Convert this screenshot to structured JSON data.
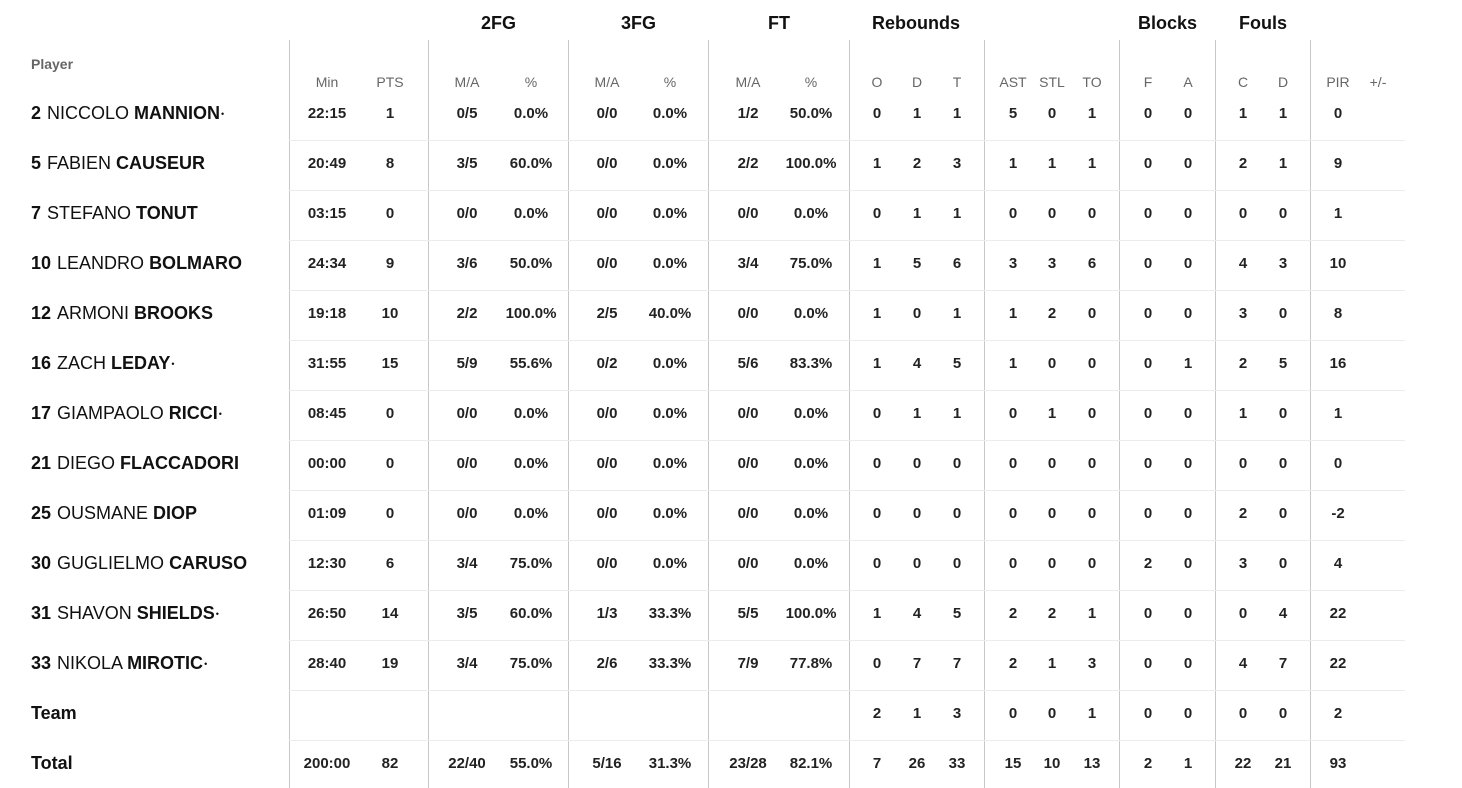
{
  "headers": {
    "player": "Player",
    "groups": [
      "2FG",
      "3FG",
      "FT",
      "Rebounds",
      "Blocks",
      "Fouls"
    ],
    "columns": [
      "Min",
      "PTS",
      "M/A",
      "%",
      "M/A",
      "%",
      "M/A",
      "%",
      "O",
      "D",
      "T",
      "AST",
      "STL",
      "TO",
      "F",
      "A",
      "C",
      "D",
      "PIR",
      "+/-"
    ]
  },
  "starter_marker": "•",
  "players": [
    {
      "jersey": "2",
      "first": "NICCOLO",
      "last": "MANNION",
      "starter": true,
      "stats": [
        "22:15",
        "1",
        "0/5",
        "0.0%",
        "0/0",
        "0.0%",
        "1/2",
        "50.0%",
        "0",
        "1",
        "1",
        "5",
        "0",
        "1",
        "0",
        "0",
        "1",
        "1",
        "0",
        ""
      ]
    },
    {
      "jersey": "5",
      "first": "FABIEN",
      "last": "CAUSEUR",
      "starter": false,
      "stats": [
        "20:49",
        "8",
        "3/5",
        "60.0%",
        "0/0",
        "0.0%",
        "2/2",
        "100.0%",
        "1",
        "2",
        "3",
        "1",
        "1",
        "1",
        "0",
        "0",
        "2",
        "1",
        "9",
        ""
      ]
    },
    {
      "jersey": "7",
      "first": "STEFANO",
      "last": "TONUT",
      "starter": false,
      "stats": [
        "03:15",
        "0",
        "0/0",
        "0.0%",
        "0/0",
        "0.0%",
        "0/0",
        "0.0%",
        "0",
        "1",
        "1",
        "0",
        "0",
        "0",
        "0",
        "0",
        "0",
        "0",
        "1",
        ""
      ]
    },
    {
      "jersey": "10",
      "first": "LEANDRO",
      "last": "BOLMARO",
      "starter": false,
      "stats": [
        "24:34",
        "9",
        "3/6",
        "50.0%",
        "0/0",
        "0.0%",
        "3/4",
        "75.0%",
        "1",
        "5",
        "6",
        "3",
        "3",
        "6",
        "0",
        "0",
        "4",
        "3",
        "10",
        ""
      ]
    },
    {
      "jersey": "12",
      "first": "ARMONI",
      "last": "BROOKS",
      "starter": false,
      "stats": [
        "19:18",
        "10",
        "2/2",
        "100.0%",
        "2/5",
        "40.0%",
        "0/0",
        "0.0%",
        "1",
        "0",
        "1",
        "1",
        "2",
        "0",
        "0",
        "0",
        "3",
        "0",
        "8",
        ""
      ]
    },
    {
      "jersey": "16",
      "first": "ZACH",
      "last": "LEDAY",
      "starter": true,
      "stats": [
        "31:55",
        "15",
        "5/9",
        "55.6%",
        "0/2",
        "0.0%",
        "5/6",
        "83.3%",
        "1",
        "4",
        "5",
        "1",
        "0",
        "0",
        "0",
        "1",
        "2",
        "5",
        "16",
        ""
      ]
    },
    {
      "jersey": "17",
      "first": "GIAMPAOLO",
      "last": "RICCI",
      "starter": true,
      "stats": [
        "08:45",
        "0",
        "0/0",
        "0.0%",
        "0/0",
        "0.0%",
        "0/0",
        "0.0%",
        "0",
        "1",
        "1",
        "0",
        "1",
        "0",
        "0",
        "0",
        "1",
        "0",
        "1",
        ""
      ]
    },
    {
      "jersey": "21",
      "first": "DIEGO",
      "last": "FLACCADORI",
      "starter": false,
      "stats": [
        "00:00",
        "0",
        "0/0",
        "0.0%",
        "0/0",
        "0.0%",
        "0/0",
        "0.0%",
        "0",
        "0",
        "0",
        "0",
        "0",
        "0",
        "0",
        "0",
        "0",
        "0",
        "0",
        ""
      ]
    },
    {
      "jersey": "25",
      "first": "OUSMANE",
      "last": "DIOP",
      "starter": false,
      "stats": [
        "01:09",
        "0",
        "0/0",
        "0.0%",
        "0/0",
        "0.0%",
        "0/0",
        "0.0%",
        "0",
        "0",
        "0",
        "0",
        "0",
        "0",
        "0",
        "0",
        "2",
        "0",
        "-2",
        ""
      ]
    },
    {
      "jersey": "30",
      "first": "GUGLIELMO",
      "last": "CARUSO",
      "starter": false,
      "stats": [
        "12:30",
        "6",
        "3/4",
        "75.0%",
        "0/0",
        "0.0%",
        "0/0",
        "0.0%",
        "0",
        "0",
        "0",
        "0",
        "0",
        "0",
        "2",
        "0",
        "3",
        "0",
        "4",
        ""
      ]
    },
    {
      "jersey": "31",
      "first": "SHAVON",
      "last": "SHIELDS",
      "starter": true,
      "stats": [
        "26:50",
        "14",
        "3/5",
        "60.0%",
        "1/3",
        "33.3%",
        "5/5",
        "100.0%",
        "1",
        "4",
        "5",
        "2",
        "2",
        "1",
        "0",
        "0",
        "0",
        "4",
        "22",
        ""
      ]
    },
    {
      "jersey": "33",
      "first": "NIKOLA",
      "last": "MIROTIC",
      "starter": true,
      "stats": [
        "28:40",
        "19",
        "3/4",
        "75.0%",
        "2/6",
        "33.3%",
        "7/9",
        "77.8%",
        "0",
        "7",
        "7",
        "2",
        "1",
        "3",
        "0",
        "0",
        "4",
        "7",
        "22",
        ""
      ]
    }
  ],
  "team": {
    "label": "Team",
    "stats": [
      "",
      "",
      "",
      "",
      "",
      "",
      "",
      "",
      "2",
      "1",
      "3",
      "0",
      "0",
      "1",
      "0",
      "0",
      "0",
      "0",
      "2",
      ""
    ]
  },
  "total": {
    "label": "Total",
    "stats": [
      "200:00",
      "82",
      "22/40",
      "55.0%",
      "5/16",
      "31.3%",
      "23/28",
      "82.1%",
      "7",
      "26",
      "33",
      "15",
      "10",
      "13",
      "2",
      "1",
      "22",
      "21",
      "93",
      ""
    ]
  }
}
